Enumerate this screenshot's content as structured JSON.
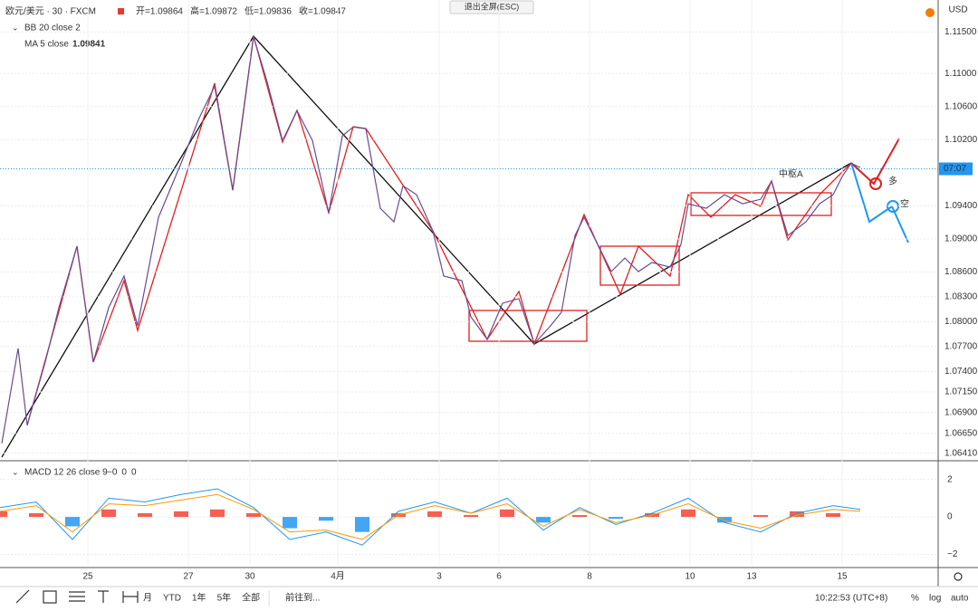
{
  "header": {
    "symbol": "欧元/美元 · 30 · FXCM",
    "ohlc": [
      "开=1.09864",
      "高=1.09872",
      "低=1.09836",
      "收=1.09847"
    ],
    "indicator_1": "BB 20 close 2",
    "indicator_2": "MA 5 close",
    "indicator_2_value": "1.09841",
    "exit_fullscreen": "退出全屏(ESC)",
    "currency": "USD"
  },
  "annotations": {
    "pivot": "中枢A",
    "long": "多",
    "short": "空"
  },
  "chart_data": [
    {
      "type": "line",
      "color": "#6a4c93",
      "x": [
        1,
        10,
        15,
        25,
        32.5,
        42.5,
        51.5,
        60,
        68.5,
        76,
        87.5,
        100,
        110,
        118.5,
        128.5,
        134,
        140,
        147.5,
        156,
        164,
        172.5,
        181.5,
        189,
        195,
        202,
        210,
        217.5,
        222.5,
        230,
        239,
        245,
        255,
        260,
        269,
        277.5,
        286.5,
        295,
        304,
        310,
        317.5,
        322.5,
        330,
        337.5,
        345,
        352.5,
        360,
        370,
        376,
        380,
        390,
        400,
        410,
        420,
        426,
        435,
        445,
        452.5,
        460,
        465,
        470,
        475
      ],
      "values": [
        1.0653,
        1.07677,
        1.06749,
        1.07513,
        1.08169,
        1.08911,
        1.07513,
        1.08169,
        1.08551,
        1.07951,
        1.09261,
        1.09916,
        1.10462,
        1.10845,
        1.09589,
        1.10462,
        1.11445,
        1.10899,
        1.10189,
        1.1055,
        1.10189,
        1.09315,
        1.10244,
        1.10353,
        1.10331,
        1.0937,
        1.09206,
        1.09643,
        1.09534,
        1.09097,
        1.08551,
        1.08496,
        1.08059,
        1.07786,
        1.08223,
        1.08278,
        1.07732,
        1.0795,
        1.08114,
        1.09042,
        1.09261,
        1.08933,
        1.08605,
        1.08769,
        1.08605,
        1.08715,
        1.0866,
        1.08933,
        1.09425,
        1.0937,
        1.09534,
        1.09425,
        1.09479,
        1.09698,
        1.09042,
        1.09206,
        1.09425,
        1.09534,
        1.09752,
        1.09916,
        1.09862
      ],
      "xlim": [
        0,
        518
      ],
      "ylim": [
        1.0633,
        1.118
      ],
      "xticks": [
        {
          "value": 48.5,
          "label": "25"
        },
        {
          "value": 104,
          "label": "27"
        },
        {
          "value": 138,
          "label": "30"
        },
        {
          "value": 186.5,
          "label": "4月"
        },
        {
          "value": 242.5,
          "label": "3"
        },
        {
          "value": 275.5,
          "label": "6"
        },
        {
          "value": 325.5,
          "label": "8"
        },
        {
          "value": 381,
          "label": "10"
        },
        {
          "value": 415,
          "label": "13"
        },
        {
          "value": 465,
          "label": "15"
        }
      ],
      "yticks": [
        {
          "value": 1.115,
          "label": "1.11500"
        },
        {
          "value": 1.11,
          "label": "1.11000"
        },
        {
          "value": 1.106,
          "label": "1.10600"
        },
        {
          "value": 1.102,
          "label": "1.10200"
        },
        {
          "value": 1.094,
          "label": "1.09400"
        },
        {
          "value": 1.09,
          "label": "1.09000"
        },
        {
          "value": 1.086,
          "label": "1.08600"
        },
        {
          "value": 1.083,
          "label": "1.08300"
        },
        {
          "value": 1.08,
          "label": "1.08000"
        },
        {
          "value": 1.077,
          "label": "1.07700"
        },
        {
          "value": 1.074,
          "label": "1.07400"
        },
        {
          "value": 1.0715,
          "label": "1.07150"
        },
        {
          "value": 1.069,
          "label": "1.06900"
        },
        {
          "value": 1.0665,
          "label": "1.06650"
        },
        {
          "value": 1.0641,
          "label": "1.06410"
        }
      ],
      "last_price": 1.09847,
      "last_price_label": "07:07",
      "grid": true
    },
    {
      "type": "macd",
      "title": "MACD 12 26 close 9",
      "legend_values": [
        {
          "label": "−0",
          "color": "#2196f3"
        },
        {
          "label": "0",
          "color": "#ff9800"
        },
        {
          "label": "0",
          "color": "#f44336"
        }
      ],
      "x": [
        0,
        20,
        40,
        60,
        80,
        100,
        120,
        140,
        160,
        180,
        200,
        220,
        240,
        260,
        280,
        300,
        320,
        340,
        360,
        380,
        400,
        420,
        440,
        460,
        475
      ],
      "series": [
        {
          "name": "MACD",
          "color": "#2196f3",
          "values": [
            0.5,
            0.8,
            -1.2,
            1.0,
            0.8,
            1.2,
            1.5,
            0.5,
            -1.2,
            -0.8,
            -1.5,
            0.3,
            0.8,
            0.2,
            1.0,
            -0.7,
            0.5,
            -0.4,
            0.2,
            1.0,
            -0.3,
            -0.8,
            0.2,
            0.6,
            0.4
          ]
        },
        {
          "name": "Signal",
          "color": "#ff9800",
          "values": [
            0.3,
            0.6,
            -0.8,
            0.7,
            0.6,
            0.9,
            1.2,
            0.4,
            -0.8,
            -0.7,
            -1.2,
            0.1,
            0.6,
            0.2,
            0.7,
            -0.5,
            0.4,
            -0.3,
            0.1,
            0.7,
            -0.2,
            -0.6,
            0.1,
            0.4,
            0.3
          ]
        },
        {
          "name": "Histogram",
          "color": "#f44336",
          "negative_color": "#2196f3",
          "values": [
            0.3,
            0.2,
            -0.5,
            0.4,
            0.2,
            0.3,
            0.4,
            0.2,
            -0.6,
            -0.2,
            -0.8,
            0.2,
            0.3,
            0.1,
            0.4,
            -0.3,
            0.1,
            -0.1,
            0.2,
            0.4,
            -0.3,
            0.1,
            0.3,
            0.2,
            0.0
          ]
        }
      ],
      "xlim": [
        0,
        518
      ],
      "ylim": [
        -2.6,
        2.85
      ],
      "yticks": [
        2,
        0,
        {
          "value": -2,
          "label": "−2"
        }
      ],
      "grid": true
    }
  ],
  "bottom_bar": {
    "ranges": [
      "月",
      "YTD",
      "1年",
      "5年",
      "全部"
    ],
    "goto": "前往到...",
    "clock": "10:22:53 (UTC+8)",
    "percent": "%",
    "log": "log",
    "auto": "auto"
  }
}
